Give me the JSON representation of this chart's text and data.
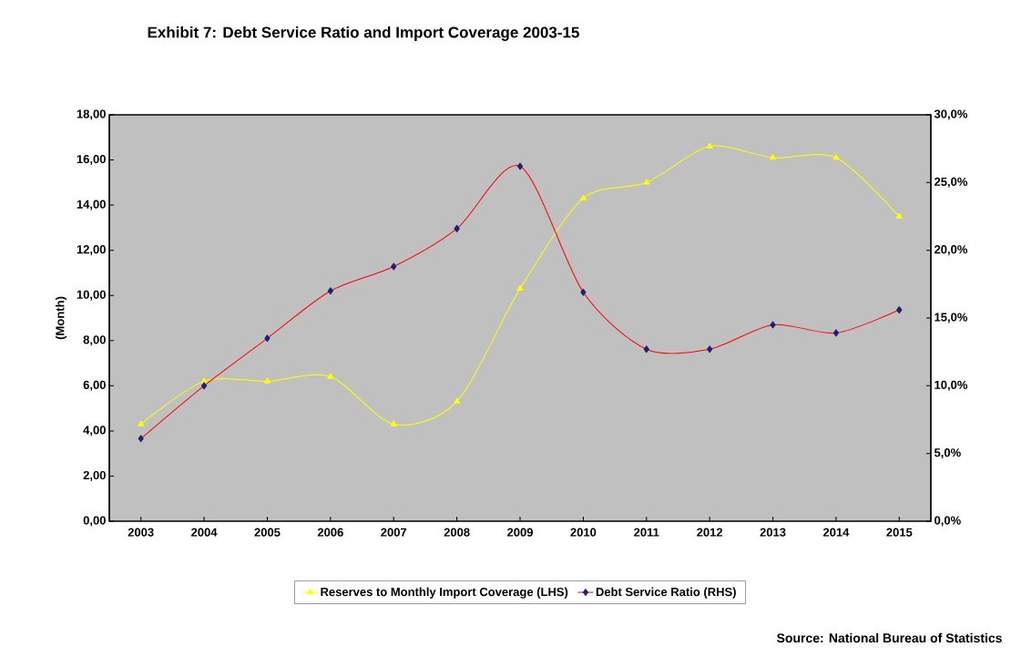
{
  "chart_data": {
    "type": "line",
    "title": "Exhibit 7: Debt Service Ratio and Import Coverage 2003-15",
    "ylabel": "(Month)",
    "categories": [
      "2003",
      "2004",
      "2005",
      "2006",
      "2007",
      "2008",
      "2009",
      "2010",
      "2011",
      "2012",
      "2013",
      "2014",
      "2015"
    ],
    "series": [
      {
        "name": "Reserves to Monthly Import Coverage (LHS)",
        "color": "#ffff00",
        "marker": "triangle",
        "values": [
          4.3,
          6.2,
          6.2,
          6.4,
          4.3,
          5.3,
          10.3,
          14.3,
          15.0,
          16.6,
          16.1,
          16.1,
          13.5
        ]
      },
      {
        "name": "Debt Service Ratio (RHS)",
        "color": "#ff0000",
        "marker": "diamond",
        "axis": "y2",
        "values": [
          6.1,
          10.0,
          13.5,
          17.0,
          18.8,
          21.6,
          26.2,
          16.9,
          12.7,
          12.7,
          14.5,
          13.9,
          15.6
        ]
      }
    ],
    "ylim": [
      0,
      18
    ],
    "yticks": [
      {
        "value": 0,
        "label": "0,00"
      },
      {
        "value": 2,
        "label": "2,00"
      },
      {
        "value": 4,
        "label": "4,00"
      },
      {
        "value": 6,
        "label": "6,00"
      },
      {
        "value": 8,
        "label": "8,00"
      },
      {
        "value": 10,
        "label": "10,00"
      },
      {
        "value": 12,
        "label": "12,00"
      },
      {
        "value": 14,
        "label": "14,00"
      },
      {
        "value": 16,
        "label": "16,00"
      },
      {
        "value": 18,
        "label": "18,00"
      }
    ],
    "y2lim": [
      0,
      30
    ],
    "y2ticks": [
      {
        "value": 0,
        "label": "0,0%"
      },
      {
        "value": 5,
        "label": "5,0%"
      },
      {
        "value": 10,
        "label": "10,0%"
      },
      {
        "value": 15,
        "label": "15,0%"
      },
      {
        "value": 20,
        "label": "20,0%"
      },
      {
        "value": 25,
        "label": "25,0%"
      },
      {
        "value": 30,
        "label": "30,0%"
      }
    ],
    "legend": "bottom",
    "annotations": [
      "Source: National Bureau of Statistics"
    ]
  }
}
